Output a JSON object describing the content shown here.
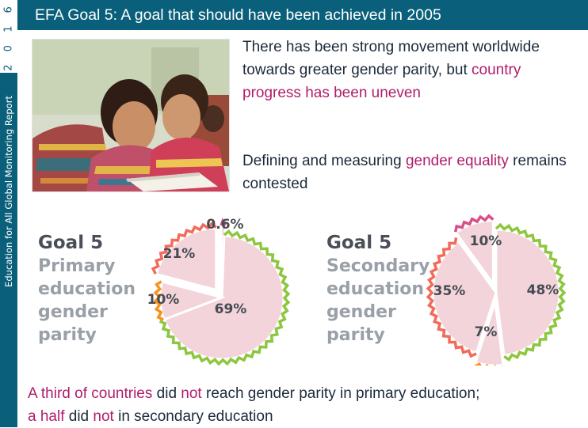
{
  "sidebar": {
    "year": "2 0 1 6",
    "report": "Education for All Global Monitoring Report"
  },
  "slide": {
    "title": "EFA Goal 5: A goal that should have been achieved in 2005"
  },
  "bullets": [
    {
      "parts": [
        {
          "text": "There has been strong movement worldwide towards greater gender parity, but ",
          "highlight": false
        },
        {
          "text": "country progress has been uneven",
          "highlight": true
        }
      ]
    },
    {
      "parts": [
        {
          "text": "Defining and measuring ",
          "highlight": false
        },
        {
          "text": "gender equality",
          "highlight": true
        },
        {
          "text": " remains contested",
          "highlight": false
        }
      ]
    }
  ],
  "cards": [
    {
      "goal": "Goal 5",
      "lines": [
        "Primary",
        "education",
        "gender",
        "parity"
      ]
    },
    {
      "goal": "Goal 5",
      "lines": [
        "Secondary",
        "education",
        "gender",
        "parity"
      ]
    }
  ],
  "chart_data": [
    {
      "type": "pie",
      "title": "Goal 5 Primary education gender parity",
      "slices": [
        {
          "label": "0.6%",
          "value": 0.6,
          "edge": "#d94f8a"
        },
        {
          "label": "69%",
          "value": 69,
          "edge": "#8dc63f"
        },
        {
          "label": "10%",
          "value": 10,
          "edge": "#f7941d"
        },
        {
          "label": "21%",
          "value": 21,
          "edge": "#f26b5b"
        }
      ],
      "start_angle_deg": 0,
      "exploded": [
        0,
        3
      ]
    },
    {
      "type": "pie",
      "title": "Goal 5 Secondary education gender parity",
      "slices": [
        {
          "label": "48%",
          "value": 48,
          "edge": "#8dc63f"
        },
        {
          "label": "7%",
          "value": 7,
          "edge": "#f7941d"
        },
        {
          "label": "35%",
          "value": 35,
          "edge": "#f26b5b"
        },
        {
          "label": "10%",
          "value": 10,
          "edge": "#d94f8a"
        }
      ],
      "start_angle_deg": 0,
      "exploded": [
        1,
        3
      ]
    }
  ],
  "colors": {
    "brand": "#0a5f7a",
    "highlight": "#b01d6a",
    "pie_fill": "#f2d4da",
    "text": "#1c2a3a"
  },
  "footer": {
    "parts": [
      {
        "text": "A third of countries",
        "highlight": true
      },
      {
        "text": " did ",
        "highlight": false
      },
      {
        "text": "not",
        "highlight": true
      },
      {
        "text": " reach gender parity in primary education;",
        "highlight": false
      },
      {
        "text": "a half",
        "highlight": true
      },
      {
        "text": " did ",
        "highlight": false
      },
      {
        "text": "not",
        "highlight": true
      },
      {
        "text": " in secondary education",
        "highlight": false
      }
    ]
  }
}
